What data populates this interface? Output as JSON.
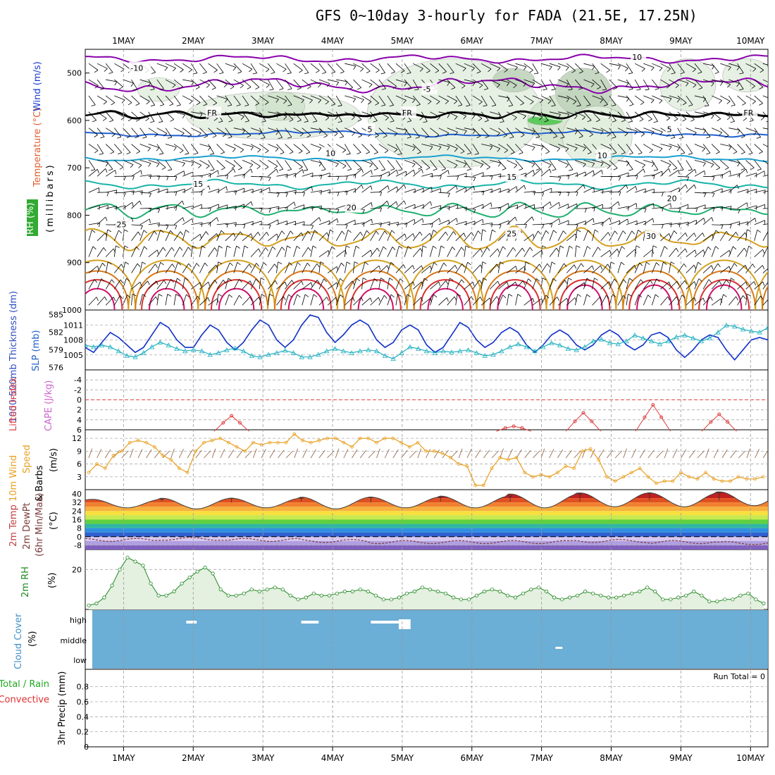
{
  "title": "GFS 0~10day 3-hourly for FADA (21.5E, 17.25N)",
  "dates": [
    "1MAY",
    "2MAY",
    "3MAY",
    "4MAY",
    "5MAY",
    "6MAY",
    "7MAY",
    "8MAY",
    "9MAY",
    "10MAY"
  ],
  "colors": {
    "temp_cold": "#8800aa",
    "freezing": "#000000",
    "temp_5": "#1f5fd0",
    "temp_10": "#1aa0d0",
    "temp_15": "#18b4a8",
    "temp_20": "#20b070",
    "temp_25": "#d4a020",
    "temp_30": "#d87818",
    "temp_35": "#d83030",
    "temp_40": "#d0106a",
    "slp": "#1030c8",
    "thickness": "#20b0c0",
    "lifted": "#e04040",
    "wind10": "#e8a020",
    "rh": "#228822",
    "cloud": "#6baed6"
  },
  "chart_data": [
    {
      "id": "upper_air",
      "type": "heatmap",
      "ylabel_parts": {
        "rh": "RH (%)",
        "temp": "Temperature (°C)",
        "wind": "Wind (m/s)",
        "units": "(millibars)"
      },
      "ylim": [
        1000,
        450
      ],
      "yticks": [
        500,
        600,
        700,
        800,
        900,
        1000
      ],
      "contour_labels": [
        {
          "text": "-10",
          "t": 0.1,
          "p": 495
        },
        {
          "text": "-5",
          "t": 4.3,
          "p": 540
        },
        {
          "text": "FR",
          "t": 1.2,
          "p": 590
        },
        {
          "text": "FR",
          "t": 4.0,
          "p": 590
        },
        {
          "text": "FR",
          "t": 8.9,
          "p": 590
        },
        {
          "text": "5",
          "t": 3.5,
          "p": 625
        },
        {
          "text": "5",
          "t": 7.8,
          "p": 625
        },
        {
          "text": "10",
          "t": 2.9,
          "p": 675
        },
        {
          "text": "10",
          "t": 6.8,
          "p": 680
        },
        {
          "text": "15",
          "t": 1.0,
          "p": 740
        },
        {
          "text": "15",
          "t": 5.5,
          "p": 725
        },
        {
          "text": "20",
          "t": 3.2,
          "p": 790
        },
        {
          "text": "20",
          "t": 7.8,
          "p": 770
        },
        {
          "text": "25",
          "t": -0.1,
          "p": 825
        },
        {
          "text": "25",
          "t": 5.5,
          "p": 845
        },
        {
          "text": "30",
          "t": 7.5,
          "p": 850
        },
        {
          "text": "10",
          "t": 7.3,
          "p": 472
        }
      ]
    },
    {
      "id": "slp_thickness",
      "type": "line",
      "ylabel_parts": {
        "thickness": "1000-500mb Thickness (dm)",
        "slp": "SLP (mb)"
      },
      "thickness_ticks": [
        576,
        579,
        582,
        585
      ],
      "slp_ticks": [
        1005,
        1008,
        1011
      ],
      "ylim_slp": [
        1002,
        1014
      ],
      "ylim_thickness": [
        576,
        585
      ],
      "series": [
        {
          "key": "slp",
          "values": [
            1006.5,
            1005.5,
            1007.5,
            1009.5,
            1008.5,
            1007,
            1005.5,
            1006.5,
            1009,
            1011.5,
            1010.5,
            1008,
            1006.5,
            1006.5,
            1009,
            1011,
            1010,
            1007.5,
            1006,
            1007.5,
            1010,
            1012,
            1011,
            1008,
            1006.5,
            1008,
            1011,
            1013,
            1012.5,
            1009.5,
            1007.5,
            1009,
            1011,
            1012,
            1011,
            1008,
            1006.5,
            1007.5,
            1010,
            1011,
            1010,
            1007,
            1005.5,
            1006.5,
            1009,
            1011.5,
            1010.5,
            1008,
            1006.5,
            1007.5,
            1009.5,
            1010.5,
            1009.5,
            1007,
            1005.5,
            1007,
            1009,
            1010,
            1009,
            1007,
            1006,
            1007,
            1009,
            1010,
            1009,
            1007,
            1006,
            1007,
            1009,
            1009.5,
            1008.5,
            1006,
            1004.5,
            1006,
            1008,
            1009,
            1008.5,
            1006,
            1004,
            1006,
            1008,
            1008.5,
            1008
          ]
        },
        {
          "key": "thickness",
          "values": [
            579.8,
            579.5,
            579.8,
            579.5,
            578.8,
            578.0,
            577.8,
            578.5,
            579.5,
            580.3,
            579.8,
            579.2,
            578.8,
            579.0,
            578.8,
            578.2,
            578.5,
            579.0,
            579.3,
            578.8,
            578.0,
            577.8,
            578.2,
            578.5,
            578.9,
            578.5,
            577.8,
            577.8,
            578.2,
            578.8,
            579.2,
            578.8,
            578.5,
            578.8,
            579.0,
            578.8,
            578.0,
            577.5,
            578.5,
            579.5,
            579.2,
            578.8,
            578.5,
            578.8,
            578.6,
            578.8,
            579.0,
            578.5,
            578.0,
            578.2,
            578.8,
            579.5,
            580.0,
            579.5,
            578.8,
            579.5,
            580.2,
            579.8,
            579.2,
            579.0,
            579.5,
            580.5,
            580.8,
            580.2,
            580.0,
            580.5,
            581.5,
            581.0,
            580.5,
            580.0,
            580.5,
            581.2,
            581.5,
            581.0,
            580.5,
            581.0,
            582.0,
            583.2,
            583.0,
            582.5,
            582.2,
            582.0,
            582.8
          ]
        }
      ]
    },
    {
      "id": "stability",
      "type": "line",
      "ylabel_parts": {
        "lifted": "Lifted Index",
        "cape": "CAPE (J/kg)"
      },
      "yticks": [
        "-4",
        "-2",
        "0",
        "2",
        "4",
        "6"
      ],
      "ylim": [
        -6,
        6
      ],
      "series": [
        {
          "key": "lifted",
          "name": "Lifted Index",
          "peaks": [
            {
              "t": 1.55,
              "v": 3.2
            },
            {
              "t": 5.6,
              "v": 5.3
            },
            {
              "t": 6.6,
              "v": 2.6
            },
            {
              "t": 7.6,
              "v": 1.0
            },
            {
              "t": 8.55,
              "v": 2.9
            },
            {
              "t": 9.5,
              "v": 2.2
            }
          ]
        }
      ]
    },
    {
      "id": "wind10m",
      "type": "line",
      "ylabel_parts": {
        "wind": "10m Wind",
        "speed": "Speed",
        "barbs": "& Barbs",
        "units": "(m/s)"
      },
      "yticks": [
        3,
        6,
        9,
        12
      ],
      "ylim": [
        0,
        14
      ],
      "series": [
        {
          "key": "wind10",
          "values": [
            4,
            6,
            5,
            8,
            9,
            11,
            11.5,
            11,
            10,
            8,
            7,
            5,
            4,
            9,
            11,
            11.5,
            12,
            11,
            10,
            9,
            11,
            10.5,
            11,
            11,
            11,
            13,
            11.5,
            11,
            11.5,
            12,
            12,
            11,
            10,
            12,
            12,
            11,
            12,
            12,
            11,
            10,
            11,
            9,
            9,
            8.5,
            7.5,
            6,
            5.5,
            1,
            1,
            5,
            7.5,
            7,
            7.5,
            4,
            3,
            3.5,
            3,
            4,
            5.5,
            5,
            9,
            9.5,
            7,
            3,
            2,
            3,
            4,
            5,
            3,
            1.5,
            2,
            2,
            4,
            3,
            2.5,
            4,
            2.5,
            2,
            2,
            3,
            2.5,
            2.5,
            3
          ]
        }
      ]
    },
    {
      "id": "temp2m",
      "type": "area",
      "ylabel_parts": {
        "temp": "2m Temp",
        "dewpt": "2m DewPt",
        "minmax": "(6hr Min/Max)",
        "units": "(°C)"
      },
      "yticks": [
        "-8",
        "0",
        "8",
        "16",
        "24",
        "32",
        "40"
      ],
      "ylim": [
        -12,
        44
      ],
      "daily_min": [
        27,
        26,
        27,
        26,
        27,
        27,
        27,
        28,
        28,
        29
      ],
      "daily_max": [
        35,
        36,
        36,
        37,
        37,
        38,
        40,
        41,
        41,
        42
      ],
      "dewpoint": [
        -3,
        -2,
        -3,
        -4,
        -5,
        -5,
        -5,
        -4,
        -5,
        -6
      ]
    },
    {
      "id": "rh2m",
      "type": "area",
      "ylabel_parts": {
        "rh": "2m RH",
        "units": "(%)"
      },
      "yticks": [
        20
      ],
      "ylim": [
        0,
        30
      ],
      "series": [
        {
          "key": "rh",
          "values": [
            2,
            3,
            6,
            12,
            20,
            26,
            24,
            22,
            13,
            7,
            7,
            9,
            13,
            16,
            19,
            21,
            18,
            10,
            7,
            7,
            8,
            10,
            9,
            10,
            11,
            10,
            7,
            5,
            6,
            8,
            7,
            7,
            8,
            9,
            9,
            10,
            9,
            7,
            5,
            5,
            6,
            8,
            9,
            11,
            10,
            9,
            8,
            6,
            5,
            5,
            7,
            9,
            10,
            9,
            7,
            6,
            8,
            10,
            11,
            9,
            6,
            5,
            6,
            7,
            9,
            8,
            7,
            6,
            6,
            7,
            8,
            9,
            11,
            9,
            5,
            5,
            6,
            7,
            9,
            7,
            4,
            4,
            5,
            5,
            7,
            8,
            5,
            3
          ]
        }
      ]
    },
    {
      "id": "cloud",
      "type": "heatmap",
      "ylabel_parts": {
        "cloud": "Cloud Cover",
        "units": "(%)"
      },
      "levels": [
        "high",
        "middle",
        "low"
      ],
      "gaps": [
        {
          "t0": 0.9,
          "t1": 1.05,
          "level": "high"
        },
        {
          "t0": 2.55,
          "t1": 2.8,
          "level": "high"
        },
        {
          "t0": 3.55,
          "t1": 3.95,
          "level": "high"
        },
        {
          "t0": 3.95,
          "t1": 4.12,
          "level": "high_tall"
        },
        {
          "t0": 6.2,
          "t1": 6.3,
          "level": "middle_low"
        }
      ]
    },
    {
      "id": "precip",
      "type": "bar",
      "ylabel_parts": {
        "total": "Total / Rain",
        "conv": "Convective",
        "precip": "3hr Precip (mm)"
      },
      "yticks": [
        "0",
        "0.2",
        "0.4",
        "0.6",
        "0.8"
      ],
      "ylim": [
        0,
        1
      ],
      "run_total_label": "Run Total = 0",
      "values": []
    }
  ]
}
